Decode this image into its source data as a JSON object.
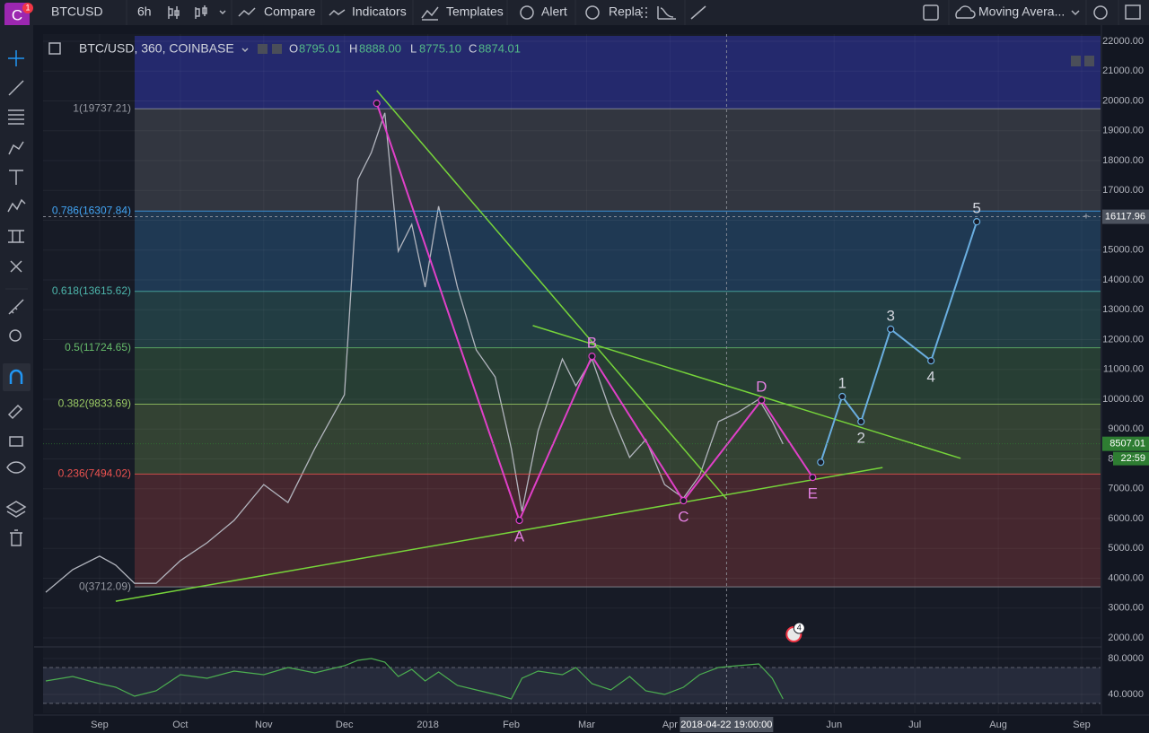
{
  "toolbar": {
    "badge": "1",
    "symbol": "BTCUSD",
    "interval": "6h",
    "buttons": [
      "Compare",
      "Indicators",
      "Templates",
      "Alert",
      "Repla"
    ],
    "study": "Moving Avera..."
  },
  "chart_data": {
    "type": "line",
    "legend": {
      "symbol": "BTC/USD, 360, COINBASE",
      "ohlc": [
        {
          "key": "O",
          "value": "8795.01"
        },
        {
          "key": "H",
          "value": "8888.00"
        },
        {
          "key": "L",
          "value": "8775.10"
        },
        {
          "key": "C",
          "value": "8874.01"
        }
      ]
    },
    "x": [
      -20,
      -10,
      0,
      6,
      13,
      21,
      30,
      40,
      50,
      61,
      70,
      80,
      91,
      96,
      101,
      106,
      111,
      116,
      121,
      126,
      133,
      140,
      147,
      153,
      157,
      163,
      172,
      177,
      183,
      190,
      197,
      203,
      210,
      217,
      223,
      230,
      237,
      245,
      250,
      254
    ],
    "series": [
      {
        "color": "#b2b5be",
        "values": [
          3530,
          4290,
          4740,
          4440,
          3830,
          3830,
          4590,
          5190,
          5940,
          7140,
          6540,
          8350,
          10150,
          17370,
          18270,
          19600,
          14960,
          15860,
          13760,
          16470,
          13760,
          11650,
          10750,
          8350,
          6240,
          8950,
          11350,
          10450,
          11350,
          9550,
          8050,
          8650,
          7140,
          6690,
          7440,
          9250,
          9550,
          10000,
          9250,
          8500
        ]
      }
    ],
    "xlim": [
      -21,
      372
    ],
    "xticks": [
      {
        "value": 0,
        "label": "Sep"
      },
      {
        "value": 30,
        "label": "Oct"
      },
      {
        "value": 61,
        "label": "Nov"
      },
      {
        "value": 91,
        "label": "Dec"
      },
      {
        "value": 122,
        "label": "2018"
      },
      {
        "value": 153,
        "label": "Feb"
      },
      {
        "value": 181,
        "label": "Mar"
      },
      {
        "value": 212,
        "label": "Apr"
      },
      {
        "value": 273,
        "label": "Jun"
      },
      {
        "value": 303,
        "label": "Jul"
      },
      {
        "value": 334,
        "label": "Aug"
      },
      {
        "value": 365,
        "label": "Sep"
      }
    ],
    "ylim": [
      1730,
      22240
    ],
    "yticks": [
      {
        "value": 2000,
        "label": "2000.00"
      },
      {
        "value": 3000,
        "label": "3000.00"
      },
      {
        "value": 4000,
        "label": "4000.00"
      },
      {
        "value": 5000,
        "label": "5000.00"
      },
      {
        "value": 6000,
        "label": "6000.00"
      },
      {
        "value": 7000,
        "label": "7000.00"
      },
      {
        "value": 8000,
        "label": "8000.00"
      },
      {
        "value": 9000,
        "label": "9000.00"
      },
      {
        "value": 10000,
        "label": "10000.00"
      },
      {
        "value": 11000,
        "label": "11000.00"
      },
      {
        "value": 12000,
        "label": "12000.00"
      },
      {
        "value": 13000,
        "label": "13000.00"
      },
      {
        "value": 14000,
        "label": "14000.00"
      },
      {
        "value": 15000,
        "label": "15000.00"
      },
      {
        "value": 16000,
        "label": "16000.00"
      },
      {
        "value": 17000,
        "label": "17000.00"
      },
      {
        "value": 18000,
        "label": "18000.00"
      },
      {
        "value": 19000,
        "label": "19000.00"
      },
      {
        "value": 20000,
        "label": "20000.00"
      },
      {
        "value": 21000,
        "label": "21000.00"
      },
      {
        "value": 22000,
        "label": "22000.00"
      }
    ],
    "grid": true,
    "fib_levels": [
      {
        "label": "1(19737.21)",
        "price": 19737.21,
        "color": "#9598a1"
      },
      {
        "label": "0.786(16307.84)",
        "price": 16307.84,
        "color": "#42a5f5"
      },
      {
        "label": "0.618(13615.62)",
        "price": 13615.62,
        "color": "#4db6ac"
      },
      {
        "label": "0.5(11724.65)",
        "price": 11724.65,
        "color": "#66bb6a"
      },
      {
        "label": "0.382(9833.69)",
        "price": 9833.69,
        "color": "#9ccc65"
      },
      {
        "label": "0.236(7494.02)",
        "price": 7494.02,
        "color": "#ef5350"
      },
      {
        "label": "0(3712.09)",
        "price": 3712.09,
        "color": "#9598a1"
      }
    ],
    "trendlines": [
      {
        "color": "#76d43a",
        "points": [
          [
            6,
            3230
          ],
          [
            291,
            7710
          ]
        ]
      },
      {
        "color": "#76d43a",
        "points": [
          [
            161,
            12470
          ],
          [
            320,
            8020
          ]
        ]
      },
      {
        "color": "#76d43a",
        "points": [
          [
            103,
            20350
          ],
          [
            233,
            6660
          ]
        ]
      }
    ],
    "waves": [
      {
        "color": "#e040c8",
        "label_color": "#e27fe0",
        "points": [
          {
            "label": null,
            "day": 103,
            "price": 19920
          },
          {
            "label": "A",
            "day": 156,
            "price": 5940
          },
          {
            "label": "B",
            "day": 183,
            "price": 11440
          },
          {
            "label": "C",
            "day": 217,
            "price": 6600
          },
          {
            "label": "D",
            "day": 246,
            "price": 9970
          },
          {
            "label": "E",
            "day": 265,
            "price": 7380
          }
        ]
      },
      {
        "color": "#6aaee0",
        "label_color": "#d1d4dc",
        "points": [
          {
            "label": null,
            "day": 268,
            "price": 7890
          },
          {
            "label": "1",
            "day": 276,
            "price": 10090
          },
          {
            "label": "2",
            "day": 283,
            "price": 9250
          },
          {
            "label": "3",
            "day": 294,
            "price": 12350
          },
          {
            "label": "4",
            "day": 309,
            "price": 11290
          },
          {
            "label": "5",
            "day": 326,
            "price": 15950
          }
        ]
      }
    ],
    "crosshair": {
      "time_label": "2018-04-22 19:00:00",
      "day": 233,
      "price": 16117.96
    },
    "last_price": {
      "price": 8507.01,
      "countdown": "22:59",
      "color": "#2e7d32"
    },
    "events_badge": "4",
    "oscillator": {
      "color": "#4caf50",
      "values": [
        55,
        60,
        52,
        48,
        38,
        44,
        62,
        58,
        66,
        62,
        70,
        64,
        72,
        78,
        80,
        76,
        60,
        68,
        55,
        65,
        50,
        45,
        40,
        35,
        58,
        66,
        62,
        70,
        52,
        45,
        60,
        44,
        40,
        48,
        62,
        70,
        72,
        74,
        58,
        35
      ],
      "ylim": [
        19,
        92
      ],
      "yticks": [
        {
          "value": 80,
          "label": "80.0000"
        },
        {
          "value": 40,
          "label": "40.0000"
        }
      ],
      "band": [
        30,
        70
      ]
    }
  }
}
